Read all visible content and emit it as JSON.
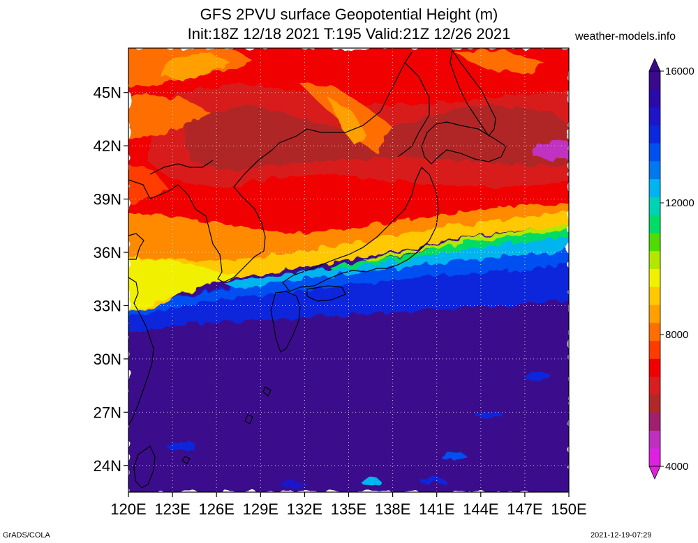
{
  "title": {
    "line1": "GFS 2PVU surface Geopotential Height (m)",
    "line2": "Init:18Z 12/18 2021 T:195 Valid:21Z 12/26 2021"
  },
  "site": "weather-models.info",
  "footer": {
    "left": "GrADS/COLA",
    "right": "2021-12-19-07:29"
  },
  "map": {
    "lat_labels": [
      "45N",
      "42N",
      "39N",
      "36N",
      "33N",
      "30N",
      "27N",
      "24N"
    ],
    "lat_values": [
      45,
      42,
      39,
      36,
      33,
      30,
      27,
      24
    ],
    "lon_labels": [
      "120E",
      "123E",
      "126E",
      "129E",
      "132E",
      "135E",
      "138E",
      "141E",
      "144E",
      "147E",
      "150E"
    ],
    "lon_values": [
      120,
      123,
      126,
      129,
      132,
      135,
      138,
      141,
      144,
      147,
      150
    ],
    "extent": {
      "lon_min": 120,
      "lon_max": 150,
      "lat_min": 22.5,
      "lat_max": 47.5
    }
  },
  "colorbar": {
    "labels": [
      "16000",
      "12000",
      "8000",
      "4000"
    ],
    "label_values": [
      16000,
      12000,
      8000,
      4000
    ],
    "min": 4000,
    "max": 16000,
    "colors": [
      "#e020e0",
      "#c030c0",
      "#a02070",
      "#b02828",
      "#d81e1e",
      "#f00000",
      "#ff3c00",
      "#ff6e00",
      "#ffa000",
      "#ffc800",
      "#f0f000",
      "#b4e600",
      "#50dc00",
      "#00dc64",
      "#00d2b4",
      "#00b4f0",
      "#0078f0",
      "#0050f0",
      "#0a28dc",
      "#1e14c8",
      "#2a0aa8",
      "#3a0a8c"
    ],
    "arrow_top_color": "#3a0a8c",
    "arrow_bottom_color": "#e020e0"
  }
}
